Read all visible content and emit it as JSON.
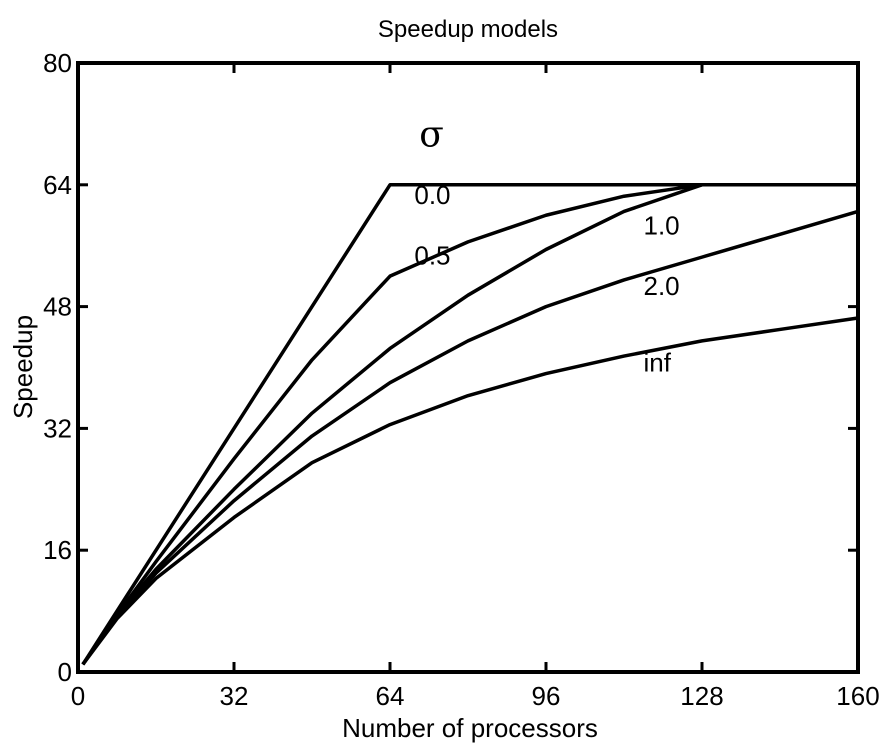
{
  "chart_data": {
    "type": "line",
    "title": "Speedup models",
    "xlabel": "Number of processors",
    "ylabel": "Speedup",
    "xlim": [
      0,
      160
    ],
    "ylim": [
      0,
      80
    ],
    "xticks": [
      0,
      32,
      64,
      96,
      128,
      160
    ],
    "yticks": [
      0,
      16,
      32,
      48,
      64,
      80
    ],
    "grid": false,
    "legend_title": "σ",
    "series": [
      {
        "name": "0.0",
        "x": [
          1,
          64,
          160
        ],
        "y": [
          1,
          64,
          64
        ]
      },
      {
        "name": "0.5",
        "x": [
          1,
          8,
          16,
          32,
          48,
          64,
          80,
          96,
          112,
          128,
          160
        ],
        "y": [
          1,
          7.5,
          14.5,
          28,
          41,
          52,
          56.5,
          60,
          62.5,
          64,
          64
        ]
      },
      {
        "name": "1.0",
        "x": [
          1,
          8,
          16,
          32,
          48,
          64,
          80,
          96,
          112,
          128,
          160
        ],
        "y": [
          1,
          7.4,
          13.5,
          24,
          34,
          42.5,
          49.5,
          55.5,
          60.5,
          64,
          64
        ]
      },
      {
        "name": "2.0",
        "x": [
          1,
          8,
          16,
          32,
          48,
          64,
          80,
          96,
          112,
          128,
          144,
          160
        ],
        "y": [
          1,
          7.2,
          13,
          22.5,
          31,
          38,
          43.5,
          48,
          51.5,
          54.5,
          57.5,
          60.5
        ]
      },
      {
        "name": "inf",
        "x": [
          1,
          8,
          16,
          32,
          48,
          64,
          80,
          96,
          112,
          128,
          144,
          160
        ],
        "y": [
          1,
          7,
          12.3,
          20.3,
          27.5,
          32.5,
          36.3,
          39.2,
          41.5,
          43.5,
          45,
          46.5
        ]
      }
    ],
    "curve_labels": [
      {
        "text": "0.0",
        "x": 69,
        "y": 61.5
      },
      {
        "text": "0.5",
        "x": 69,
        "y": 53.5
      },
      {
        "text": "1.0",
        "x": 116,
        "y": 57.5
      },
      {
        "text": "2.0",
        "x": 116,
        "y": 49.5
      },
      {
        "text": "inf",
        "x": 116,
        "y": 39.5
      }
    ],
    "legend_title_pos": {
      "x": 70,
      "y": 69
    }
  }
}
